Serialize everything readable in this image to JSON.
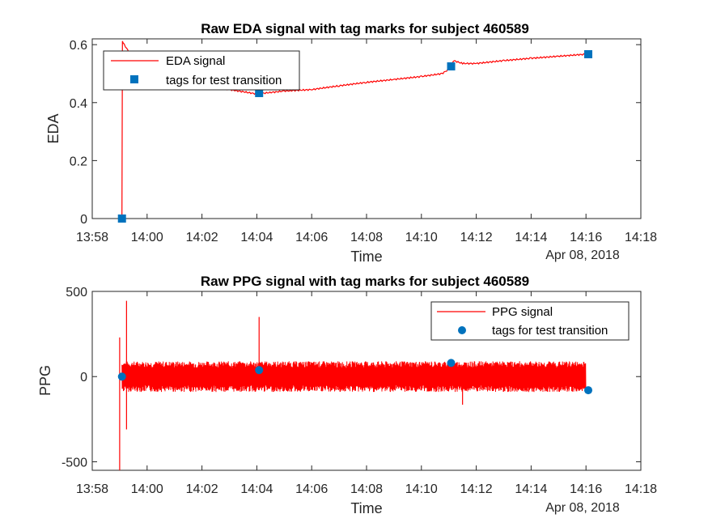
{
  "colors": {
    "signal": "#ff0000",
    "tag": "#0072bd",
    "axis": "#262626"
  },
  "chart_data": [
    {
      "type": "line",
      "title": "Raw EDA signal with tag marks for subject 460589",
      "xlabel": "Time",
      "ylabel": "EDA",
      "x_secondary_label": "Apr 08, 2018",
      "xlim_minutes": [
        0,
        20
      ],
      "x_ticks": [
        "13:58",
        "14:00",
        "14:02",
        "14:04",
        "14:06",
        "14:08",
        "14:10",
        "14:12",
        "14:14",
        "14:16",
        "14:18"
      ],
      "ylim": [
        0,
        0.62
      ],
      "y_ticks": [
        "0",
        "0.2",
        "0.4",
        "0.6"
      ],
      "legend_position": "top-left",
      "series": [
        {
          "name": "EDA signal",
          "kind": "line",
          "color": "#ff0000",
          "x_time": [
            "13:59:05",
            "13:59:06",
            "13:59:10",
            "13:59:30",
            "14:00:00",
            "14:01:00",
            "14:02:00",
            "14:03:00",
            "14:04:00",
            "14:05:00",
            "14:06:00",
            "14:07:00",
            "14:08:00",
            "14:09:00",
            "14:10:00",
            "14:10:45",
            "14:11:00",
            "14:11:10",
            "14:11:30",
            "14:12:00",
            "14:13:00",
            "14:14:00",
            "14:15:00",
            "14:16:00",
            "14:16:05"
          ],
          "values": [
            0.0,
            0.61,
            0.6,
            0.55,
            0.48,
            0.46,
            0.455,
            0.445,
            0.43,
            0.44,
            0.445,
            0.458,
            0.47,
            0.48,
            0.49,
            0.5,
            0.515,
            0.545,
            0.535,
            0.535,
            0.545,
            0.553,
            0.56,
            0.567,
            0.568
          ]
        },
        {
          "name": "tags for test transition",
          "kind": "marker",
          "marker": "square",
          "color": "#0072bd",
          "x_time": [
            "13:59:05",
            "14:04:05",
            "14:11:05",
            "14:16:05"
          ],
          "values": [
            0.0,
            0.433,
            0.525,
            0.567
          ]
        }
      ]
    },
    {
      "type": "line",
      "title": "Raw PPG signal with tag marks for subject 460589",
      "xlabel": "Time",
      "ylabel": "PPG",
      "x_secondary_label": "Apr 08, 2018",
      "xlim_minutes": [
        0,
        20
      ],
      "x_ticks": [
        "13:58",
        "14:00",
        "14:02",
        "14:04",
        "14:06",
        "14:08",
        "14:10",
        "14:12",
        "14:14",
        "14:16",
        "14:18"
      ],
      "ylim": [
        -550,
        500
      ],
      "y_ticks": [
        "-500",
        "0",
        "500"
      ],
      "legend_position": "top-right",
      "series": [
        {
          "name": "PPG signal",
          "kind": "line",
          "color": "#ff0000",
          "x_start_time": "13:59:05",
          "x_end_time": "14:16:00",
          "typical_amplitude": 90,
          "spikes": [
            {
              "x_time": "13:59:00",
              "max": 230,
              "min": -550
            },
            {
              "x_time": "13:59:15",
              "max": 445,
              "min": -310
            },
            {
              "x_time": "14:04:05",
              "max": 350,
              "min": -80
            },
            {
              "x_time": "14:11:30",
              "max": 60,
              "min": -165
            }
          ]
        },
        {
          "name": "tags for test transition",
          "kind": "marker",
          "marker": "circle",
          "color": "#0072bd",
          "x_time": [
            "13:59:05",
            "14:04:05",
            "14:11:05",
            "14:16:05"
          ],
          "values": [
            0,
            38,
            80,
            -80
          ]
        }
      ]
    }
  ]
}
